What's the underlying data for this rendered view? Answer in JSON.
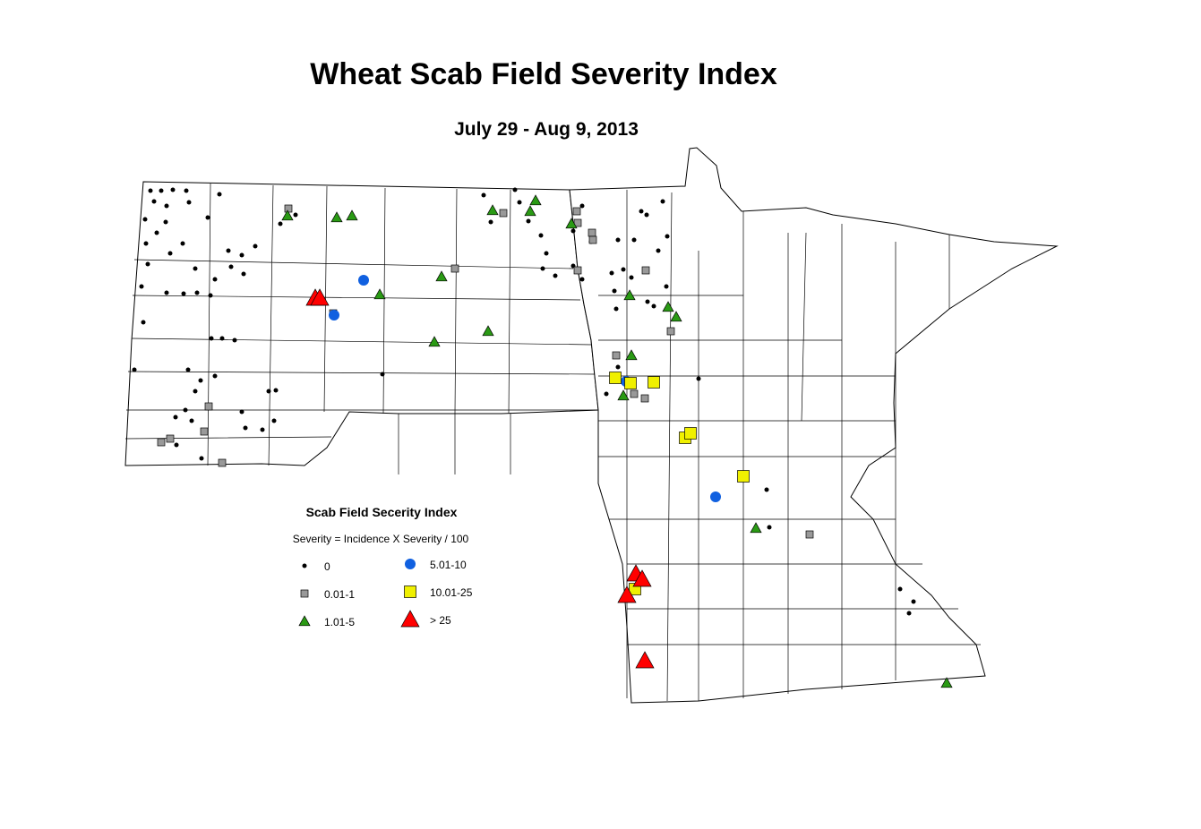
{
  "title": "Wheat Scab Field Severity Index",
  "subtitle": "July 29 - Aug 9, 2013",
  "legend": {
    "title": "Scab Field Secerity Index",
    "note": "Severity = Incidence X Severity / 100",
    "items": [
      {
        "label": "0",
        "shape": "dot",
        "color": "#000000"
      },
      {
        "label": "5.01-10",
        "shape": "circle",
        "color": "#1060e0"
      },
      {
        "label": "0.01-1",
        "shape": "square",
        "color": "#999999"
      },
      {
        "label": "10.01-25",
        "shape": "square",
        "color": "#f0f000"
      },
      {
        "label": "1.01-5",
        "shape": "triangle",
        "color": "#2a9a14"
      },
      {
        "label": "> 25",
        "shape": "triangle",
        "color": "#ff0000"
      }
    ]
  }
}
